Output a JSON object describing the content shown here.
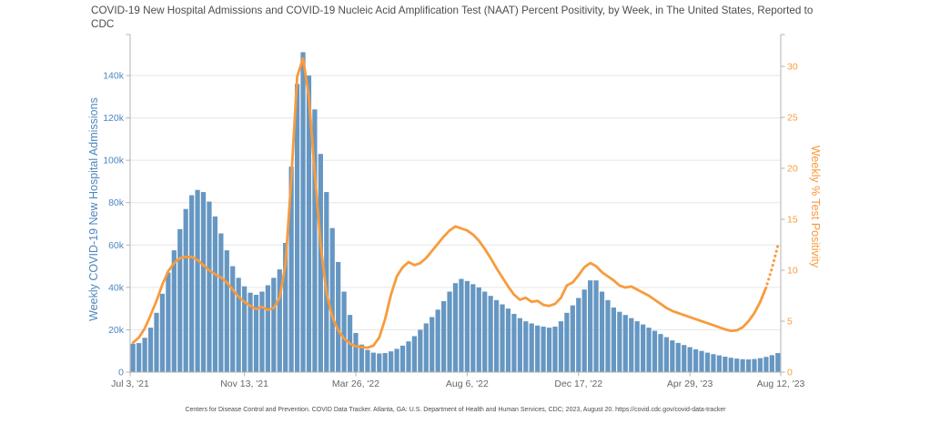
{
  "header": {
    "title": "COVID-19 New Hospital Admissions and COVID-19 Nucleic Acid Amplification Test (NAAT) Percent Positivity, by Week, in The United States, Reported to CDC"
  },
  "footer": {
    "source": "Centers for Disease Control and Prevention. COVID Data Tracker. Atlanta, GA: U.S. Department of Health and Human Services, CDC; 2023, August 20. https://covid.cdc.gov/covid-data-tracker"
  },
  "chart_data": {
    "type": "combo",
    "title": "COVID-19 New Hospital Admissions and COVID-19 Nucleic Acid Amplification Test (NAAT) Percent Positivity, by Week, in The United States, Reported to CDC",
    "x_tick_labels": [
      "Jul 3, '21",
      "Nov 13, '21",
      "Mar 26, '22",
      "Aug 6, '22",
      "Dec 17, '22",
      "Apr 29, '23",
      "Aug 12, '23"
    ],
    "x_tick_indices": [
      0,
      19,
      38,
      57,
      76,
      95,
      110
    ],
    "grid": "horizontal-from-left-axis",
    "legend_position": "none",
    "left_axis": {
      "title": "Weekly COVID-19 New Hospital Admissions",
      "tick_labels": [
        "0",
        "20k",
        "40k",
        "60k",
        "80k",
        "100k",
        "120k",
        "140k"
      ],
      "tick_values": [
        0,
        20000,
        40000,
        60000,
        80000,
        100000,
        120000,
        140000
      ],
      "range_max": 159000,
      "color": "#4c87be"
    },
    "right_axis": {
      "title": "Weekly % Test Positivity",
      "tick_labels": [
        "0",
        "5",
        "10",
        "15",
        "20",
        "25",
        "30"
      ],
      "tick_values": [
        0,
        5,
        10,
        15,
        20,
        25,
        30
      ],
      "range_max": 33.1,
      "color": "#f89b3d"
    },
    "series": [
      {
        "name": "Weekly COVID-19 New Hospital Admissions",
        "type": "bar",
        "axis": "left",
        "color": "#6697c2",
        "values": [
          13400,
          13700,
          16200,
          21000,
          28000,
          37000,
          47000,
          57500,
          67500,
          77000,
          83500,
          86000,
          85000,
          80500,
          73500,
          65500,
          57500,
          50000,
          44500,
          40500,
          37500,
          36500,
          38000,
          41000,
          44500,
          48500,
          61000,
          97000,
          136000,
          151000,
          140000,
          124000,
          103000,
          85000,
          68000,
          52000,
          38000,
          27000,
          18500,
          13000,
          10500,
          9200,
          8800,
          9000,
          9800,
          11000,
          12500,
          14500,
          17000,
          20000,
          23000,
          26000,
          29500,
          33500,
          38000,
          42000,
          44000,
          43000,
          41500,
          40000,
          38000,
          36000,
          34000,
          32000,
          30000,
          27500,
          25500,
          24000,
          23000,
          22000,
          21500,
          21000,
          21500,
          24000,
          28000,
          31500,
          35000,
          39000,
          43300,
          43300,
          38000,
          34000,
          30500,
          28500,
          27000,
          25500,
          24000,
          22500,
          21000,
          19500,
          18000,
          16500,
          15000,
          13800,
          12800,
          11800,
          10800,
          10000,
          9200,
          8500,
          7900,
          7300,
          6800,
          6400,
          6100,
          6000,
          6200,
          6600,
          7200,
          8000,
          9000
        ]
      },
      {
        "name": "Weekly % Test Positivity",
        "type": "line",
        "axis": "right",
        "color": "#f89b3d",
        "dotted_tail_points": 3,
        "values": [
          2.9,
          3.4,
          4.3,
          5.6,
          7.0,
          8.6,
          9.9,
          10.7,
          11.2,
          11.3,
          11.3,
          11.0,
          10.5,
          10.0,
          9.6,
          9.3,
          8.8,
          8.1,
          7.4,
          6.9,
          6.5,
          6.2,
          6.4,
          6.1,
          6.3,
          7.3,
          10.5,
          19.0,
          29.0,
          30.8,
          27.0,
          19.5,
          12.5,
          7.8,
          5.4,
          4.1,
          3.3,
          2.8,
          2.55,
          2.45,
          2.4,
          2.6,
          3.4,
          5.2,
          7.6,
          9.4,
          10.3,
          10.8,
          10.5,
          10.7,
          11.2,
          11.9,
          12.6,
          13.3,
          13.9,
          14.3,
          14.1,
          13.9,
          13.5,
          12.9,
          12.1,
          11.2,
          10.2,
          9.3,
          8.4,
          7.6,
          7.1,
          7.3,
          6.9,
          7.0,
          6.6,
          6.5,
          6.7,
          7.3,
          8.5,
          8.8,
          9.5,
          10.3,
          10.7,
          10.4,
          9.8,
          9.4,
          9.0,
          8.5,
          8.3,
          8.4,
          8.1,
          7.8,
          7.5,
          7.1,
          6.7,
          6.3,
          6.0,
          5.8,
          5.6,
          5.4,
          5.2,
          5.0,
          4.8,
          4.6,
          4.4,
          4.2,
          4.05,
          4.1,
          4.4,
          5.0,
          5.8,
          6.9,
          8.3,
          10.2,
          12.4
        ]
      }
    ],
    "style_colors": {
      "bar_fill": "#6697c2",
      "line_stroke": "#f89b3d",
      "gridline": "#e6e6e6",
      "axis_spine": "#b3b3b3",
      "title_text": "#4d4d4d",
      "x_tick_text": "#666666"
    }
  }
}
